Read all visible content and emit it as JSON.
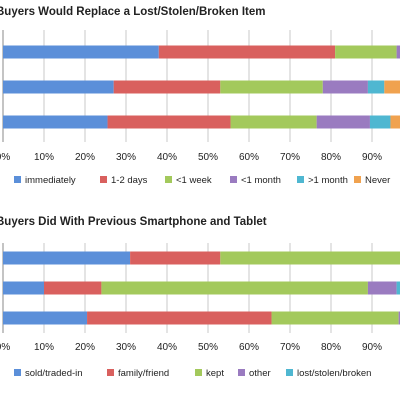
{
  "chart_data": [
    {
      "type": "bar",
      "orientation": "horizontal",
      "stacked": true,
      "title": "Buyers Would Replace a Lost/Stolen/Broken Item",
      "categories": [
        "",
        "",
        ""
      ],
      "xlim": [
        0,
        100
      ],
      "xtick_step": 10,
      "xtick_suffix": "%",
      "grid": true,
      "legend_position": "bottom",
      "series": [
        {
          "name": "immediately",
          "color": "#5b8fd9",
          "values": [
            25.5,
            27,
            38
          ]
        },
        {
          "name": "1-2 days",
          "color": "#d9605e",
          "values": [
            30,
            26,
            43
          ]
        },
        {
          "name": "<1 week",
          "color": "#a3c95c",
          "values": [
            21,
            25,
            15
          ]
        },
        {
          "name": "<1 month",
          "color": "#9a7bc0",
          "values": [
            13,
            11,
            2
          ]
        },
        {
          "name": ">1 month",
          "color": "#4fb7d1",
          "values": [
            5,
            4,
            1
          ]
        },
        {
          "name": "Never",
          "color": "#f0a24f",
          "values": [
            5.5,
            7,
            1
          ]
        }
      ]
    },
    {
      "type": "bar",
      "orientation": "horizontal",
      "stacked": true,
      "title": "Buyers Did With Previous Smartphone and Tablet",
      "categories": [
        "",
        "",
        ""
      ],
      "xlim": [
        0,
        100
      ],
      "xtick_step": 10,
      "xtick_suffix": "%",
      "grid": true,
      "legend_position": "bottom",
      "series": [
        {
          "name": "sold/traded-in",
          "color": "#5b8fd9",
          "values": [
            20.5,
            10,
            31
          ]
        },
        {
          "name": "family/friend",
          "color": "#d9605e",
          "values": [
            45,
            14,
            22
          ]
        },
        {
          "name": "kept",
          "color": "#a3c95c",
          "values": [
            31,
            65,
            44
          ]
        },
        {
          "name": "other",
          "color": "#9a7bc0",
          "values": [
            2,
            7,
            2
          ]
        },
        {
          "name": "lost/stolen/broken",
          "color": "#4fb7d1",
          "values": [
            1.5,
            4,
            1
          ]
        }
      ]
    }
  ]
}
